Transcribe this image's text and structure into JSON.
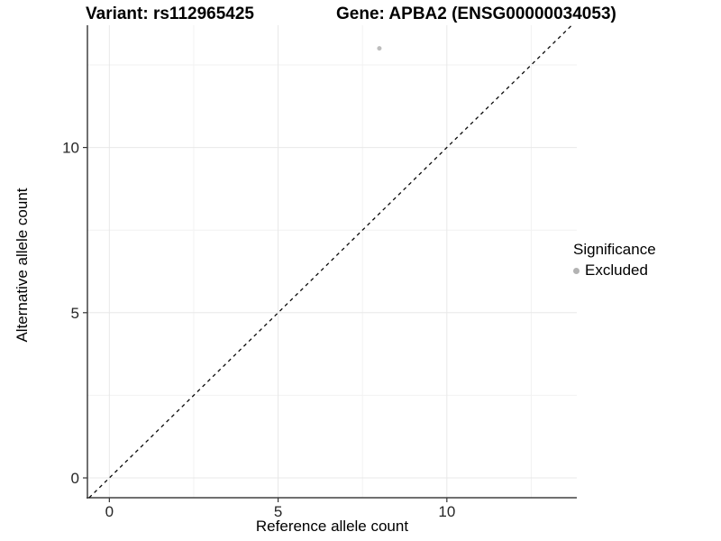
{
  "chart_data": {
    "type": "scatter",
    "title_left": "Variant: rs112965425",
    "title_right": "Gene: APBA2 (ENSG00000034053)",
    "xlabel": "Reference allele count",
    "ylabel": "Alternative allele count",
    "xlim": [
      -0.65,
      13.85
    ],
    "ylim": [
      -0.6,
      13.7
    ],
    "x_ticks": [
      0,
      5,
      10
    ],
    "y_ticks": [
      0,
      5,
      10
    ],
    "x_minor_ticks": [
      2.5,
      7.5,
      12.5
    ],
    "y_minor_ticks": [
      2.5,
      7.5,
      12.5
    ],
    "grid": "major+minor",
    "legend_position": "right",
    "points": [
      {
        "x": 8,
        "y": 13,
        "series": "Excluded",
        "color": "#bdbdbd",
        "radius": 2.5
      }
    ],
    "reference_line": {
      "slope": 1,
      "intercept": 0,
      "style": "dashed",
      "color": "#0a0a0a"
    },
    "legend": {
      "title": "Significance",
      "items": [
        {
          "label": "Excluded",
          "color": "#b3b3b3"
        }
      ]
    }
  },
  "colors": {
    "background": "#ffffff",
    "grid_major": "#e8e8e8",
    "grid_minor": "#f2f2f2",
    "axis_line": "#404040",
    "tick_mark": "#333333",
    "tick_label": "#262626"
  }
}
